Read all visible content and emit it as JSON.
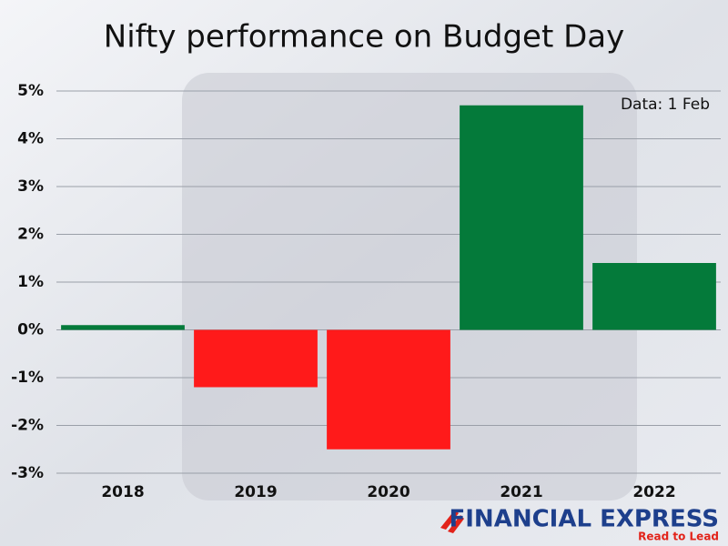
{
  "chart_data": {
    "type": "bar",
    "title": "Nifty performance on Budget Day",
    "annotation": "Data: 1 Feb",
    "categories": [
      "2018",
      "2019",
      "2020",
      "2021",
      "2022"
    ],
    "values": [
      0.1,
      -1.2,
      -2.5,
      4.7,
      1.4
    ],
    "colors": [
      "#047a3a",
      "#ff1a1a",
      "#ff1a1a",
      "#047a3a",
      "#047a3a"
    ],
    "ylim": [
      -3,
      5
    ],
    "yticks": [
      {
        "value": -3,
        "label": "-3%"
      },
      {
        "value": -2,
        "label": "-2%"
      },
      {
        "value": -1,
        "label": "-1%"
      },
      {
        "value": 0,
        "label": "0%"
      },
      {
        "value": 1,
        "label": "1%"
      },
      {
        "value": 2,
        "label": "2%"
      },
      {
        "value": 3,
        "label": "3%"
      },
      {
        "value": 4,
        "label": "4%"
      },
      {
        "value": 5,
        "label": "5%"
      }
    ],
    "grid": true,
    "branding": {
      "name": "FINANCIAL EXPRESS",
      "tagline": "Read to Lead"
    }
  }
}
